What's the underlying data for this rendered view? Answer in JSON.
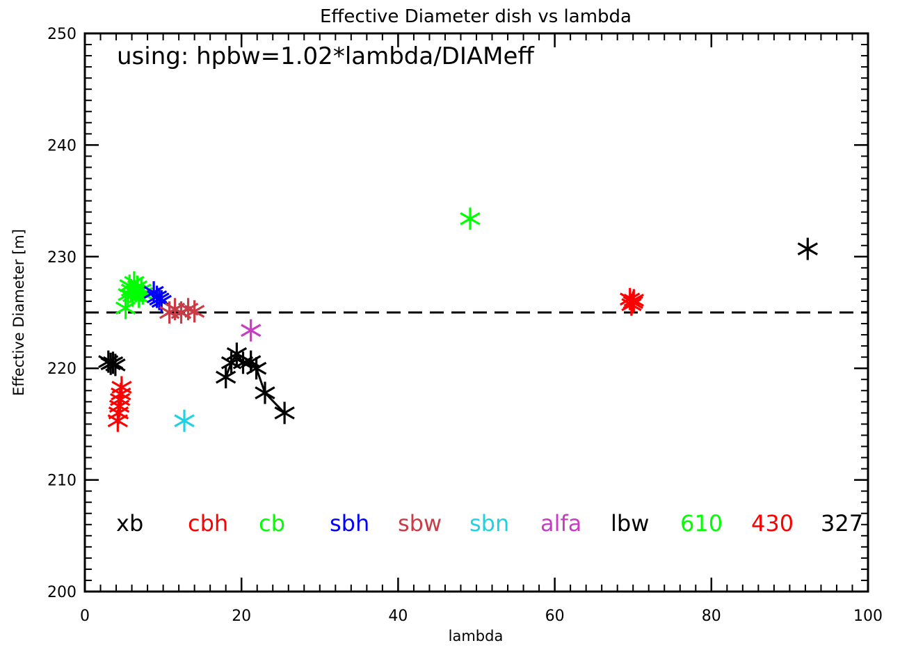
{
  "chart_data": {
    "type": "scatter",
    "title": "Effective Diameter dish vs lambda",
    "xlabel": "lambda",
    "ylabel": "Effective Diameter [m]",
    "xlim": [
      0,
      100
    ],
    "ylim": [
      200,
      250
    ],
    "xticks": [
      "0",
      "20",
      "40",
      "60",
      "80",
      "100"
    ],
    "yticks": [
      "200",
      "210",
      "220",
      "230",
      "240",
      "250"
    ],
    "annotation": "using: hpbw=1.02*lambda/DIAMeff",
    "reference_line": {
      "y": 225,
      "style": "dashed",
      "color": "#000000"
    },
    "legend_placement": "bottom, inside plot",
    "series": [
      {
        "name": "xb",
        "color": "#000000",
        "connected": false,
        "points": [
          [
            3.0,
            220.6
          ],
          [
            3.3,
            220.4
          ],
          [
            3.6,
            220.5
          ],
          [
            3.9,
            220.3
          ]
        ]
      },
      {
        "name": "cbh",
        "color": "#ff0000",
        "connected": false,
        "points": [
          [
            4.2,
            215.3
          ],
          [
            4.3,
            216.0
          ],
          [
            4.4,
            216.6
          ],
          [
            4.5,
            217.2
          ],
          [
            4.6,
            217.7
          ],
          [
            4.7,
            218.3
          ]
        ]
      },
      {
        "name": "cb",
        "color": "#00ff00",
        "connected": false,
        "points": [
          [
            5.2,
            225.4
          ],
          [
            5.5,
            226.6
          ],
          [
            5.7,
            227.4
          ],
          [
            5.9,
            227.0
          ],
          [
            6.1,
            226.5
          ],
          [
            6.3,
            227.7
          ],
          [
            6.5,
            226.9
          ],
          [
            6.7,
            227.3
          ],
          [
            6.9,
            226.4
          ],
          [
            7.2,
            227.0
          ],
          [
            7.4,
            226.7
          ]
        ]
      },
      {
        "name": "sbh",
        "color": "#0000ff",
        "connected": false,
        "points": [
          [
            8.8,
            226.8
          ],
          [
            9.2,
            226.4
          ],
          [
            9.5,
            226.2
          ],
          [
            9.8,
            226.0
          ]
        ]
      },
      {
        "name": "sbw",
        "color": "#c83c46",
        "connected": false,
        "points": [
          [
            10.8,
            225.0
          ],
          [
            11.5,
            225.3
          ],
          [
            12.3,
            225.0
          ],
          [
            13.2,
            225.3
          ],
          [
            14.0,
            225.1
          ]
        ]
      },
      {
        "name": "sbn",
        "color": "#1ed2e6",
        "connected": false,
        "points": [
          [
            12.7,
            215.3
          ]
        ]
      },
      {
        "name": "alfa",
        "color": "#c83cc3",
        "connected": false,
        "points": [
          [
            21.2,
            223.4
          ]
        ]
      },
      {
        "name": "lbw",
        "color": "#000000",
        "connected": true,
        "points": [
          [
            18.0,
            219.2
          ],
          [
            18.7,
            220.5
          ],
          [
            19.4,
            221.3
          ],
          [
            20.2,
            220.5
          ],
          [
            21.2,
            220.6
          ],
          [
            21.9,
            220.0
          ],
          [
            23.0,
            217.8
          ],
          [
            25.5,
            216.0
          ]
        ]
      },
      {
        "name": "610",
        "color": "#00ff00",
        "connected": false,
        "points": [
          [
            49.2,
            233.4
          ]
        ]
      },
      {
        "name": "430",
        "color": "#ff0000",
        "connected": false,
        "points": [
          [
            69.6,
            226.2
          ],
          [
            69.8,
            225.7
          ],
          [
            70.0,
            225.9
          ],
          [
            70.1,
            226.1
          ]
        ]
      },
      {
        "name": "327",
        "color": "#000000",
        "connected": false,
        "points": [
          [
            92.3,
            230.7
          ]
        ]
      }
    ]
  }
}
